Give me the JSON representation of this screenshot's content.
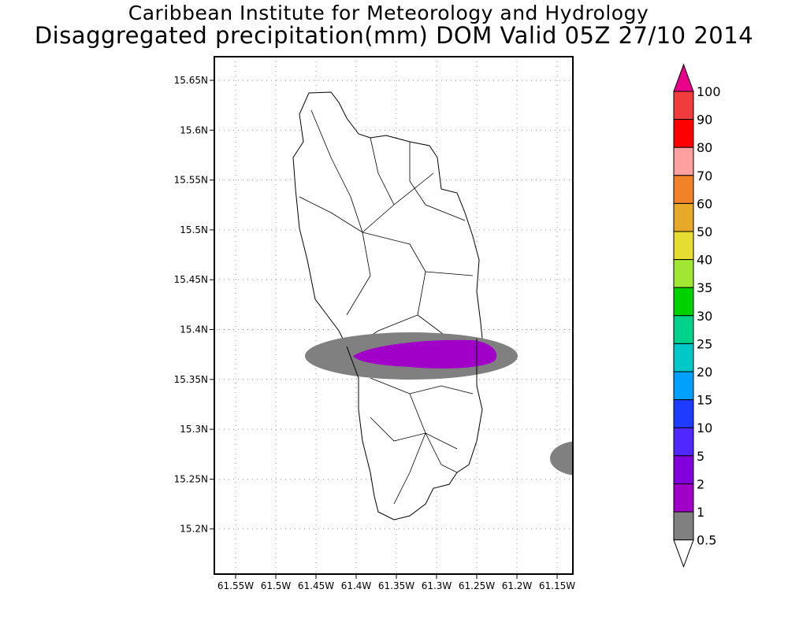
{
  "title": {
    "line1": "Caribbean Institute for Meteorology and Hydrology",
    "line2": "Disaggregated precipitation(mm) DOM Valid 05Z 27/10 2014"
  },
  "map": {
    "lat_ticks": [
      "15.65N",
      "15.6N",
      "15.55N",
      "15.5N",
      "15.45N",
      "15.4N",
      "15.35N",
      "15.3N",
      "15.25N",
      "15.2N"
    ],
    "lon_ticks": [
      "61.55W",
      "61.5W",
      "61.45W",
      "61.4W",
      "61.35W",
      "61.3W",
      "61.25W",
      "61.2W",
      "61.15W"
    ],
    "precip_features": [
      {
        "label": "0.5-1 mm band across central island",
        "level": "0.5"
      },
      {
        "label": "1-2 mm core",
        "level": "1"
      },
      {
        "label": "0.5-1 mm area east edge",
        "level": "0.5"
      }
    ]
  },
  "colorbar": {
    "labels": [
      "100",
      "90",
      "80",
      "70",
      "60",
      "50",
      "40",
      "35",
      "30",
      "25",
      "20",
      "15",
      "10",
      "5",
      "2",
      "1",
      "0.5"
    ],
    "top_arrow_color": "#e8008a",
    "colors": [
      "#f03c3c",
      "#ff0000",
      "#ffa0a0",
      "#f08228",
      "#e6aa28",
      "#e6dc32",
      "#a0e632",
      "#00d200",
      "#00d28c",
      "#00c8c8",
      "#00a0ff",
      "#1e3cff",
      "#5028ff",
      "#8200dc",
      "#a000c8",
      "#808080"
    ],
    "bottom_arrow_color": "#ffffff"
  }
}
